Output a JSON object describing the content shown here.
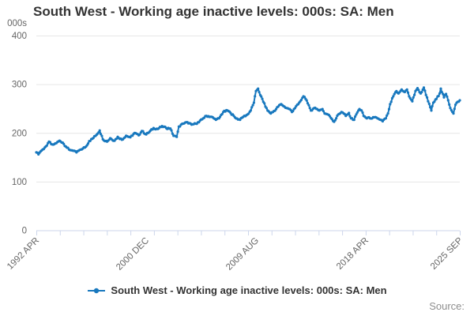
{
  "title": "South West - Working age inactive levels: 000s: SA: Men",
  "source_label": "Source:",
  "legend": {
    "label": "South West - Working age inactive levels: 000s: SA: Men"
  },
  "colors": {
    "line": "#1878be",
    "grid": "#e6e6e6",
    "axis": "#ccd6eb",
    "tick_text": "#666666",
    "title_text": "#333333",
    "source_text": "#8e8e8e"
  },
  "chart_data": {
    "type": "line",
    "title": "South West - Working age inactive levels: 000s: SA: Men",
    "xlabel": "",
    "ylabel": "000s",
    "legend_position": "bottom-center",
    "grid": true,
    "x_range": [
      1992.25,
      2025.667
    ],
    "y_range": [
      0,
      400
    ],
    "y_ticks": [
      {
        "label": "0",
        "value": 0
      },
      {
        "label": "100",
        "value": 100
      },
      {
        "label": "200",
        "value": 200
      },
      {
        "label": "300",
        "value": 300
      },
      {
        "label": "400",
        "value": 400
      }
    ],
    "x_ticks": [
      {
        "label": "1992 APR",
        "year": 1992.25
      },
      {
        "label": "2000 DEC",
        "year": 2000.917
      },
      {
        "label": "2009 AUG",
        "year": 2009.583
      },
      {
        "label": "2018 APR",
        "year": 2018.25
      },
      {
        "label": "2025 SEP",
        "year": 2025.667
      }
    ],
    "minor_tick_intervals": 18,
    "monthly_jitter": 1.5,
    "series": [
      {
        "name": "South West - Working age inactive levels: 000s: SA: Men",
        "color": "#1878be",
        "points": [
          [
            1992.25,
            160
          ],
          [
            1992.42,
            156
          ],
          [
            1992.58,
            162
          ],
          [
            1992.75,
            166
          ],
          [
            1992.92,
            170
          ],
          [
            1993.08,
            174
          ],
          [
            1993.25,
            182
          ],
          [
            1993.42,
            177
          ],
          [
            1993.58,
            176
          ],
          [
            1993.83,
            179
          ],
          [
            1994.08,
            184
          ],
          [
            1994.33,
            180
          ],
          [
            1994.58,
            172
          ],
          [
            1994.83,
            166
          ],
          [
            1995.08,
            164
          ],
          [
            1995.42,
            160
          ],
          [
            1995.67,
            165
          ],
          [
            1995.92,
            168
          ],
          [
            1996.17,
            172
          ],
          [
            1996.42,
            183
          ],
          [
            1996.67,
            188
          ],
          [
            1997.0,
            196
          ],
          [
            1997.25,
            205
          ],
          [
            1997.5,
            187
          ],
          [
            1997.83,
            182
          ],
          [
            1998.08,
            189
          ],
          [
            1998.42,
            184
          ],
          [
            1998.67,
            192
          ],
          [
            1999.0,
            186
          ],
          [
            1999.33,
            194
          ],
          [
            1999.67,
            191
          ],
          [
            2000.0,
            200
          ],
          [
            2000.33,
            195
          ],
          [
            2000.58,
            204
          ],
          [
            2000.92,
            197
          ],
          [
            2001.17,
            202
          ],
          [
            2001.5,
            210
          ],
          [
            2001.83,
            208
          ],
          [
            2002.17,
            214
          ],
          [
            2002.5,
            210
          ],
          [
            2002.83,
            209
          ],
          [
            2003.08,
            194
          ],
          [
            2003.33,
            192
          ],
          [
            2003.5,
            213
          ],
          [
            2003.83,
            219
          ],
          [
            2004.17,
            222
          ],
          [
            2004.5,
            217
          ],
          [
            2004.83,
            219
          ],
          [
            2005.08,
            222
          ],
          [
            2005.42,
            230
          ],
          [
            2005.67,
            235
          ],
          [
            2006.08,
            233
          ],
          [
            2006.42,
            227
          ],
          [
            2006.67,
            230
          ],
          [
            2007.0,
            243
          ],
          [
            2007.33,
            246
          ],
          [
            2007.58,
            241
          ],
          [
            2008.0,
            230
          ],
          [
            2008.33,
            227
          ],
          [
            2008.58,
            233
          ],
          [
            2008.92,
            238
          ],
          [
            2009.17,
            246
          ],
          [
            2009.42,
            262
          ],
          [
            2009.58,
            286
          ],
          [
            2009.75,
            291
          ],
          [
            2009.92,
            278
          ],
          [
            2010.08,
            270
          ],
          [
            2010.33,
            254
          ],
          [
            2010.5,
            246
          ],
          [
            2010.75,
            240
          ],
          [
            2010.92,
            243
          ],
          [
            2011.17,
            249
          ],
          [
            2011.42,
            257
          ],
          [
            2011.58,
            259
          ],
          [
            2011.83,
            254
          ],
          [
            2012.0,
            251
          ],
          [
            2012.25,
            249
          ],
          [
            2012.42,
            243
          ],
          [
            2012.58,
            249
          ],
          [
            2012.92,
            259
          ],
          [
            2013.08,
            265
          ],
          [
            2013.33,
            275
          ],
          [
            2013.5,
            270
          ],
          [
            2013.75,
            257
          ],
          [
            2013.92,
            246
          ],
          [
            2014.17,
            251
          ],
          [
            2014.42,
            249
          ],
          [
            2014.58,
            246
          ],
          [
            2014.83,
            249
          ],
          [
            2015.0,
            240
          ],
          [
            2015.25,
            238
          ],
          [
            2015.42,
            234
          ],
          [
            2015.75,
            223
          ],
          [
            2016.08,
            238
          ],
          [
            2016.33,
            243
          ],
          [
            2016.5,
            240
          ],
          [
            2016.67,
            235
          ],
          [
            2016.92,
            241
          ],
          [
            2017.08,
            230
          ],
          [
            2017.33,
            227
          ],
          [
            2017.5,
            238
          ],
          [
            2017.75,
            249
          ],
          [
            2017.92,
            246
          ],
          [
            2018.08,
            235
          ],
          [
            2018.33,
            230
          ],
          [
            2018.5,
            232
          ],
          [
            2018.75,
            230
          ],
          [
            2018.92,
            232
          ],
          [
            2019.17,
            230
          ],
          [
            2019.42,
            227
          ],
          [
            2019.58,
            224
          ],
          [
            2019.83,
            230
          ],
          [
            2020.0,
            240
          ],
          [
            2020.17,
            259
          ],
          [
            2020.42,
            275
          ],
          [
            2020.67,
            286
          ],
          [
            2020.83,
            281
          ],
          [
            2021.08,
            289
          ],
          [
            2021.33,
            284
          ],
          [
            2021.5,
            289
          ],
          [
            2021.67,
            275
          ],
          [
            2021.92,
            265
          ],
          [
            2022.17,
            286
          ],
          [
            2022.33,
            292
          ],
          [
            2022.58,
            281
          ],
          [
            2022.83,
            293
          ],
          [
            2023.0,
            278
          ],
          [
            2023.17,
            265
          ],
          [
            2023.42,
            246
          ],
          [
            2023.58,
            262
          ],
          [
            2023.83,
            270
          ],
          [
            2024.08,
            281
          ],
          [
            2024.17,
            291
          ],
          [
            2024.42,
            273
          ],
          [
            2024.58,
            280
          ],
          [
            2024.75,
            267
          ],
          [
            2024.92,
            251
          ],
          [
            2025.17,
            240
          ],
          [
            2025.33,
            258
          ],
          [
            2025.5,
            264
          ],
          [
            2025.67,
            267
          ]
        ]
      }
    ]
  }
}
